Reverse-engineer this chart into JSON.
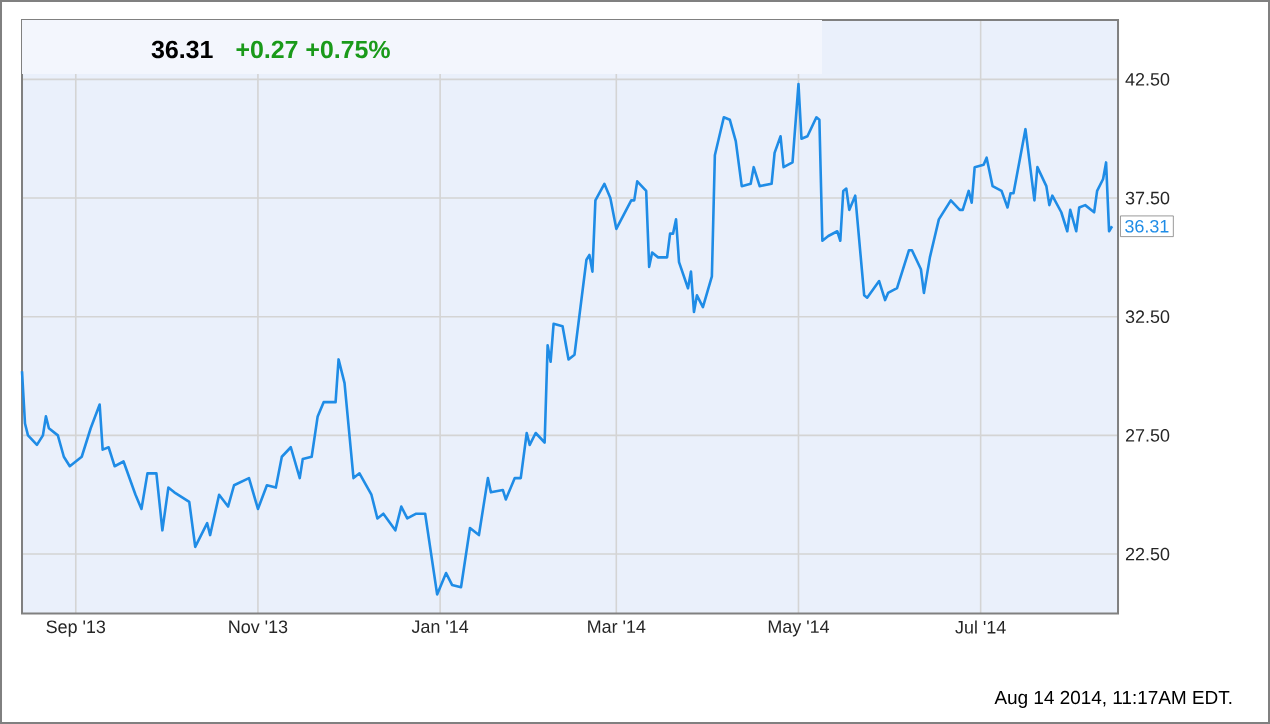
{
  "chart_data": {
    "type": "line",
    "title": "36.31",
    "subtitle": "+0.27 +0.75%",
    "x": [
      "2013-08-14",
      "2013-08-15",
      "2013-08-16",
      "2013-08-19",
      "2013-08-21",
      "2013-08-22",
      "2013-08-23",
      "2013-08-26",
      "2013-08-28",
      "2013-08-30",
      "2013-09-03",
      "2013-09-06",
      "2013-09-09",
      "2013-09-10",
      "2013-09-12",
      "2013-09-14",
      "2013-09-17",
      "2013-09-21",
      "2013-09-23",
      "2013-09-25",
      "2013-09-28",
      "2013-09-30",
      "2013-10-02",
      "2013-10-04",
      "2013-10-09",
      "2013-10-11",
      "2013-10-15",
      "2013-10-16",
      "2013-10-19",
      "2013-10-22",
      "2013-10-24",
      "2013-10-29",
      "2013-11-01",
      "2013-11-04",
      "2013-11-07",
      "2013-11-09",
      "2013-11-12",
      "2013-11-15",
      "2013-11-16",
      "2013-11-19",
      "2013-11-21",
      "2013-11-23",
      "2013-11-27",
      "2013-11-28",
      "2013-11-30",
      "2013-12-03",
      "2013-12-05",
      "2013-12-09",
      "2013-12-11",
      "2013-12-13",
      "2013-12-17",
      "2013-12-19",
      "2013-12-21",
      "2013-12-24",
      "2013-12-27",
      "2013-12-31",
      "2014-01-03",
      "2014-01-05",
      "2014-01-08",
      "2014-01-11",
      "2014-01-14",
      "2014-01-17",
      "2014-01-18",
      "2014-01-22",
      "2014-01-23",
      "2014-01-26",
      "2014-01-28",
      "2014-01-30",
      "2014-01-31",
      "2014-02-02",
      "2014-02-05",
      "2014-02-06",
      "2014-02-07",
      "2014-02-08",
      "2014-02-11",
      "2014-02-13",
      "2014-02-15",
      "2014-02-19",
      "2014-02-20",
      "2014-02-21",
      "2014-02-22",
      "2014-02-25",
      "2014-02-27",
      "2014-03-01",
      "2014-03-06",
      "2014-03-07",
      "2014-03-08",
      "2014-03-11",
      "2014-03-12",
      "2014-03-13",
      "2014-03-15",
      "2014-03-18",
      "2014-03-19",
      "2014-03-20",
      "2014-03-21",
      "2014-03-22",
      "2014-03-25",
      "2014-03-26",
      "2014-03-27",
      "2014-03-28",
      "2014-03-30",
      "2014-04-02",
      "2014-04-03",
      "2014-04-06",
      "2014-04-08",
      "2014-04-10",
      "2014-04-12",
      "2014-04-15",
      "2014-04-16",
      "2014-04-18",
      "2014-04-22",
      "2014-04-23",
      "2014-04-25",
      "2014-04-26",
      "2014-04-29",
      "2014-05-01",
      "2014-05-02",
      "2014-05-04",
      "2014-05-07",
      "2014-05-08",
      "2014-05-09",
      "2014-05-11",
      "2014-05-14",
      "2014-05-15",
      "2014-05-16",
      "2014-05-17",
      "2014-05-18",
      "2014-05-20",
      "2014-05-23",
      "2014-05-24",
      "2014-05-28",
      "2014-05-30",
      "2014-05-31",
      "2014-06-03",
      "2014-06-05",
      "2014-06-07",
      "2014-06-08",
      "2014-06-11",
      "2014-06-12",
      "2014-06-14",
      "2014-06-17",
      "2014-06-18",
      "2014-06-21",
      "2014-06-24",
      "2014-06-25",
      "2014-06-27",
      "2014-06-28",
      "2014-06-29",
      "2014-07-02",
      "2014-07-03",
      "2014-07-05",
      "2014-07-08",
      "2014-07-10",
      "2014-07-11",
      "2014-07-12",
      "2014-07-16",
      "2014-07-19",
      "2014-07-20",
      "2014-07-23",
      "2014-07-24",
      "2014-07-25",
      "2014-07-28",
      "2014-07-30",
      "2014-07-31",
      "2014-08-02",
      "2014-08-03",
      "2014-08-05",
      "2014-08-08",
      "2014-08-09",
      "2014-08-11",
      "2014-08-12",
      "2014-08-13",
      "2014-08-14"
    ],
    "series": [
      {
        "color": "#1f8ce6",
        "values": [
          30.2,
          28.0,
          27.5,
          27.1,
          27.5,
          28.3,
          27.8,
          27.5,
          26.6,
          26.2,
          26.6,
          27.8,
          28.8,
          26.9,
          27.0,
          26.2,
          26.4,
          25.0,
          24.4,
          25.9,
          25.9,
          23.5,
          25.3,
          25.1,
          24.7,
          22.8,
          23.8,
          23.3,
          25.0,
          24.5,
          25.4,
          25.7,
          24.4,
          25.4,
          25.3,
          26.6,
          27.0,
          25.7,
          26.5,
          26.6,
          28.3,
          28.9,
          28.9,
          30.7,
          29.7,
          25.7,
          25.9,
          25.0,
          24.0,
          24.2,
          23.5,
          24.5,
          24.0,
          24.2,
          24.2,
          20.8,
          21.7,
          21.2,
          21.1,
          23.6,
          23.3,
          25.7,
          25.1,
          25.2,
          24.8,
          25.7,
          25.7,
          27.6,
          27.1,
          27.6,
          27.2,
          31.3,
          30.6,
          32.2,
          32.1,
          30.7,
          30.9,
          34.9,
          35.1,
          34.4,
          37.4,
          38.1,
          37.5,
          36.2,
          37.4,
          37.4,
          38.2,
          37.8,
          34.6,
          35.2,
          35.0,
          35.0,
          36.0,
          36.0,
          36.6,
          34.8,
          33.7,
          34.4,
          32.7,
          33.4,
          32.9,
          34.2,
          39.3,
          40.9,
          40.8,
          39.9,
          38.0,
          38.1,
          38.8,
          38.0,
          38.1,
          39.4,
          40.1,
          38.8,
          39.0,
          42.3,
          40.0,
          40.1,
          40.9,
          40.8,
          35.7,
          35.9,
          36.1,
          35.7,
          37.8,
          37.9,
          37.0,
          37.6,
          33.4,
          33.3,
          34.0,
          33.2,
          33.5,
          33.7,
          34.5,
          35.3,
          35.3,
          34.5,
          33.5,
          35.0,
          36.6,
          36.8,
          37.4,
          37.0,
          37.0,
          37.8,
          37.3,
          38.8,
          38.9,
          39.2,
          38.0,
          37.8,
          37.1,
          37.7,
          37.7,
          40.4,
          37.4,
          38.8,
          38.0,
          37.2,
          37.6,
          36.9,
          36.1,
          37.0,
          36.1,
          37.1,
          37.2,
          36.9,
          37.8,
          38.3,
          39.0,
          36.1,
          36.31
        ]
      }
    ],
    "xlim": [
      "2013-08-14",
      "2014-08-16"
    ],
    "xticks": [
      {
        "value": "2013-09-01",
        "label": "Sep '13"
      },
      {
        "value": "2013-11-01",
        "label": "Nov '13"
      },
      {
        "value": "2014-01-01",
        "label": "Jan '14"
      },
      {
        "value": "2014-03-01",
        "label": "Mar '14"
      },
      {
        "value": "2014-05-01",
        "label": "May '14"
      },
      {
        "value": "2014-07-01",
        "label": "Jul '14"
      }
    ],
    "ylim": [
      20,
      45
    ],
    "yticks": [
      {
        "value": 22.5,
        "label": "22.50"
      },
      {
        "value": 27.5,
        "label": "27.50"
      },
      {
        "value": 32.5,
        "label": "32.50"
      },
      {
        "value": 37.5,
        "label": "37.50"
      },
      {
        "value": 42.5,
        "label": "42.50"
      }
    ],
    "grid": true,
    "marker": "none",
    "line_style": "solid",
    "annotations": [
      {
        "text": "36.31",
        "x": "2014-08-14",
        "y": 36.31
      },
      "Aug 14 2014, 11:17AM EDT."
    ]
  }
}
